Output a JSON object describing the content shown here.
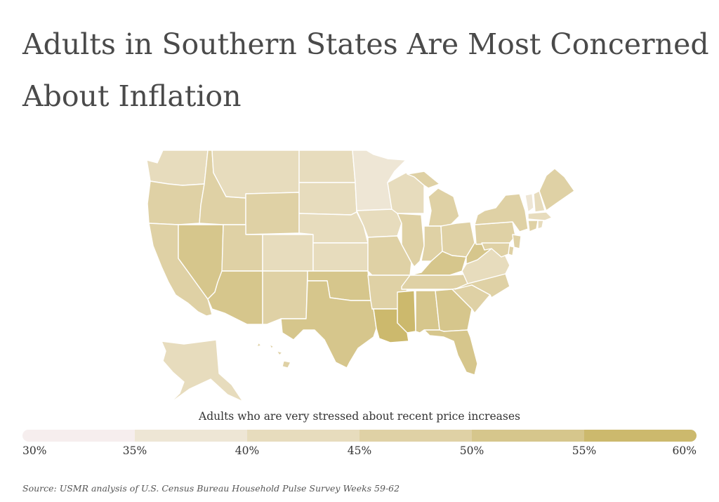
{
  "title": "Adults in Southern States Are Most Concerned About Inflation",
  "legend": {
    "title": "Adults who are very stressed about recent price increases",
    "ticks": [
      "30%",
      "35%",
      "40%",
      "45%",
      "50%",
      "55%",
      "60%"
    ],
    "colors": [
      "#f6eeee",
      "#eee6d5",
      "#e7dcbd",
      "#dfd1a5",
      "#d6c68c",
      "#ccb96d"
    ]
  },
  "source": "Source: USMR analysis of U.S. Census Bureau Household Pulse Survey Weeks 59-62",
  "map_data": {
    "metric": "Adults who are very stressed about recent price increases",
    "unit": "%",
    "scale_min": 30,
    "scale_max": 60,
    "states": {
      "WA": 43,
      "OR": 46,
      "CA": 47,
      "NV": 52,
      "ID": 45,
      "MT": 42,
      "WY": 45,
      "UT": 46,
      "AZ": 51,
      "CO": 41,
      "NM": 45,
      "ND": 41,
      "SD": 42,
      "NE": 43,
      "KS": 43,
      "OK": 50,
      "TX": 51,
      "MN": 37,
      "IA": 43,
      "MO": 48,
      "AR": 47,
      "LA": 55,
      "WI": 42,
      "IL": 45,
      "MI": 48,
      "IN": 48,
      "OH": 46,
      "KY": 52,
      "TN": 47,
      "MS": 57,
      "AL": 50,
      "GA": 51,
      "FL": 51,
      "SC": 46,
      "NC": 45,
      "VA": 43,
      "WV": 54,
      "PA": 46,
      "NY": 47,
      "ME": 45,
      "VT": 39,
      "NH": 42,
      "MA": 43,
      "RI": 44,
      "CT": 45,
      "NJ": 47,
      "DE": 47,
      "MD": 46,
      "AK": 42,
      "HI": 46
    }
  }
}
